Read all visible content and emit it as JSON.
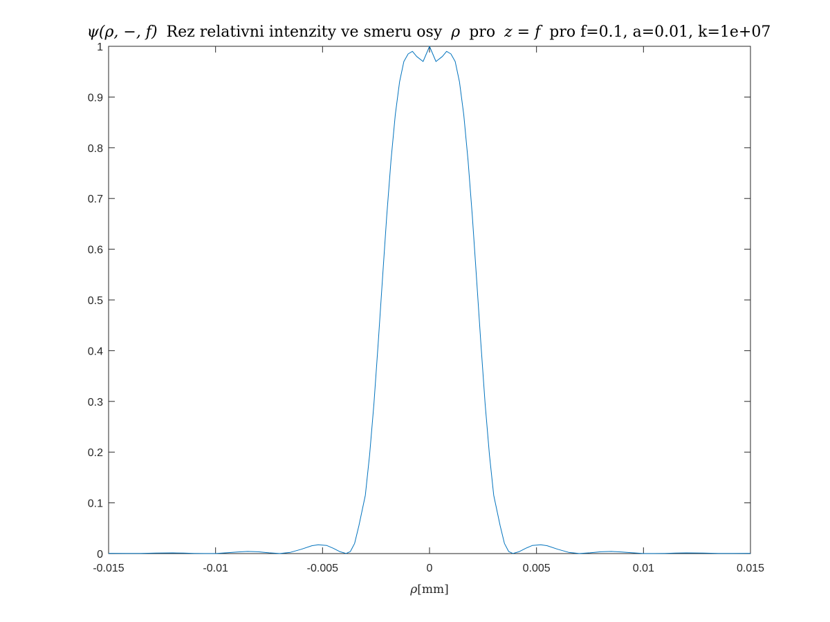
{
  "chart_data": {
    "type": "line",
    "title": "ψ(ρ, −, f) Rez relativni intenzity ve smeru osy ρ pro z = f pro f=0.1, a=0.01, k=1e+07",
    "title_parts": {
      "math1": "ψ(ρ, −, f)",
      "text1": "Rez relativni intenzity ve smeru osy",
      "math2": "ρ",
      "text2": "pro",
      "math3": "z = f",
      "text3": "pro f=0.1, a=0.01, k=1e+07"
    },
    "xlabel": "ρ[mm]",
    "xlabel_parts": {
      "math": "ρ",
      "text": "[mm]"
    },
    "ylabel": "",
    "xlim": [
      -0.015,
      0.015
    ],
    "ylim": [
      0,
      1
    ],
    "x_ticks": [
      -0.015,
      -0.01,
      -0.005,
      0,
      0.005,
      0.01,
      0.015
    ],
    "x_tick_labels": [
      "-0.015",
      "-0.01",
      "-0.005",
      "0",
      "0.005",
      "0.01",
      "0.015"
    ],
    "y_ticks": [
      0,
      0.1,
      0.2,
      0.3,
      0.4,
      0.5,
      0.6,
      0.7,
      0.8,
      0.9,
      1
    ],
    "y_tick_labels": [
      "0",
      "0.1",
      "0.2",
      "0.3",
      "0.4",
      "0.5",
      "0.6",
      "0.7",
      "0.8",
      "0.9",
      "1"
    ],
    "grid": false,
    "line_color": "#0072BD",
    "series": [
      {
        "x": [
          -0.015,
          -0.0142,
          -0.0135,
          -0.0128,
          -0.012,
          -0.0115,
          -0.011,
          -0.0105,
          -0.01,
          -0.0095,
          -0.009,
          -0.0085,
          -0.008,
          -0.0075,
          -0.007,
          -0.0065,
          -0.006,
          -0.0055,
          -0.0052,
          -0.0048,
          -0.0045,
          -0.0042,
          -0.0039,
          -0.0037,
          -0.0035,
          -0.0033,
          -0.003,
          -0.0028,
          -0.0026,
          -0.0024,
          -0.0022,
          -0.002,
          -0.0018,
          -0.0016,
          -0.0014,
          -0.0012,
          -0.001,
          -0.0008,
          -0.0006,
          -0.0003,
          0,
          0.0003,
          0.0006,
          0.0008,
          0.001,
          0.0012,
          0.0014,
          0.0016,
          0.0018,
          0.002,
          0.0022,
          0.0024,
          0.0026,
          0.0028,
          0.003,
          0.0033,
          0.0035,
          0.0037,
          0.0039,
          0.0042,
          0.0045,
          0.0048,
          0.0052,
          0.0055,
          0.006,
          0.0065,
          0.007,
          0.0075,
          0.008,
          0.0085,
          0.009,
          0.0095,
          0.01,
          0.0105,
          0.011,
          0.0115,
          0.012,
          0.0128,
          0.0135,
          0.0142,
          0.015
        ],
        "y": [
          0.0005,
          0.0003,
          0.0004,
          0.001,
          0.0014,
          0.001,
          0.0004,
          0.0001,
          0.0002,
          0.0015,
          0.0032,
          0.0042,
          0.0035,
          0.0015,
          0.0001,
          0.0025,
          0.0085,
          0.0155,
          0.0175,
          0.016,
          0.0105,
          0.004,
          0.0003,
          0.004,
          0.02,
          0.055,
          0.115,
          0.195,
          0.295,
          0.415,
          0.54,
          0.665,
          0.775,
          0.865,
          0.93,
          0.97,
          0.985,
          0.99,
          0.98,
          0.97,
          1.0,
          0.97,
          0.98,
          0.99,
          0.985,
          0.97,
          0.93,
          0.865,
          0.775,
          0.665,
          0.54,
          0.415,
          0.295,
          0.195,
          0.115,
          0.055,
          0.02,
          0.004,
          0.0003,
          0.004,
          0.0105,
          0.016,
          0.0175,
          0.0155,
          0.0085,
          0.0025,
          0.0001,
          0.0015,
          0.0035,
          0.0042,
          0.0032,
          0.0015,
          0.0002,
          0.0001,
          0.0004,
          0.001,
          0.0014,
          0.001,
          0.0004,
          0.0003,
          0.0005
        ]
      }
    ]
  }
}
